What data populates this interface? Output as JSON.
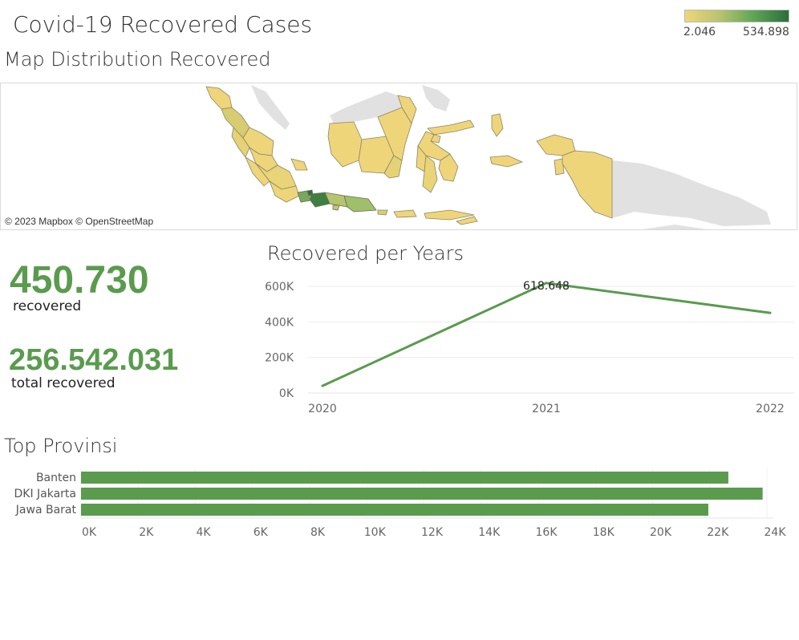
{
  "dashboard": {
    "title": "Covid-19 Recovered Cases",
    "legend": {
      "min_label": "2.046",
      "max_label": "534.898",
      "color_low": "#efd57a",
      "color_high": "#2a6e3b"
    }
  },
  "map": {
    "title": "Map Distribution Recovered",
    "attribution": "© 2023 Mapbox © OpenStreetMap"
  },
  "kpis": [
    {
      "value": "450.730",
      "label": "recovered"
    },
    {
      "value": "256.542.031",
      "label": "total recovered"
    }
  ],
  "colors": {
    "accent": "#5a9b4e",
    "region_base": "#efd57a",
    "region_mid": "#b5c56e",
    "region_high": "#3f7f42",
    "land_gray": "#e1e1e1"
  },
  "chart_data": [
    {
      "type": "line",
      "title": "Recovered per Years",
      "x": [
        "2020",
        "2021",
        "2022"
      ],
      "series": [
        {
          "values": [
            40000,
            618648,
            450730
          ]
        }
      ],
      "ylim": [
        0,
        650000
      ],
      "yticks": [
        0,
        200000,
        400000,
        600000
      ],
      "ytick_labels": [
        "0K",
        "200K",
        "400K",
        "600K"
      ],
      "annotation": {
        "x": "2021",
        "label": "618.648"
      },
      "grid": true
    },
    {
      "type": "bar",
      "orientation": "horizontal",
      "title": "Top Provinsi",
      "categories": [
        "Banten",
        "DKI Jakarta",
        "Jawa Barat"
      ],
      "values": [
        22650,
        23850,
        21950
      ],
      "xlim": [
        0,
        24500
      ],
      "xticks": [
        0,
        2000,
        4000,
        6000,
        8000,
        10000,
        12000,
        14000,
        16000,
        18000,
        20000,
        22000,
        24000
      ],
      "xtick_labels": [
        "0K",
        "2K",
        "4K",
        "6K",
        "8K",
        "10K",
        "12K",
        "14K",
        "16K",
        "18K",
        "20K",
        "22K",
        "24K"
      ],
      "grid": true
    }
  ]
}
